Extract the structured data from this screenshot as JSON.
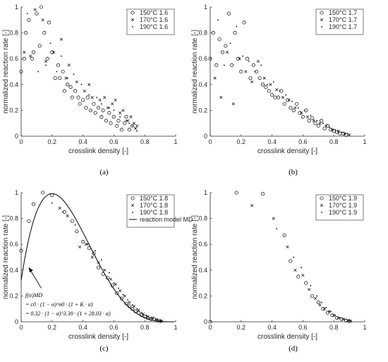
{
  "colors": {
    "axis": "#262626",
    "marker": "#000000",
    "background": "#ffffff"
  },
  "panels": [
    {
      "caption": "(a)",
      "xlabel": "crosslink density [-]",
      "ylabel": "normalized reaction rate [-]",
      "xticks": [
        "0",
        "0.2",
        "0.4",
        "0.6",
        "0.8",
        "1"
      ],
      "yticks": [
        "0",
        "0.2",
        "0.4",
        "0.6",
        "0.8",
        "1"
      ],
      "legend": [
        "150°C 1.6",
        "170°C 1.6",
        "190°C 1.6"
      ]
    },
    {
      "caption": "(b)",
      "xlabel": "crosslink density [-]",
      "ylabel": "normalized reaction rate [-]",
      "xticks": [
        "0",
        "0.2",
        "0.4",
        "0.6",
        "0.8",
        "1"
      ],
      "yticks": [
        "0",
        "0.2",
        "0.4",
        "0.6",
        "0.8",
        "1"
      ],
      "legend": [
        "150°C 1.7",
        "170°C 1.7",
        "190°C 1.7"
      ]
    },
    {
      "caption": "(c)",
      "xlabel": "crosslink density [-]",
      "ylabel": "normalized reaction rate [-]",
      "xticks": [
        "0",
        "0.2",
        "0.4",
        "0.6",
        "0.8",
        "1"
      ],
      "yticks": [
        "0",
        "0.2",
        "0.4",
        "0.6",
        "0.8",
        "1"
      ],
      "legend": [
        "150°C 1.8",
        "170°C 1.8",
        "190°C 1.8",
        "reaction model MD"
      ],
      "annotation": {
        "line1": "f(α)MD",
        "line2": "= c0 · (1 − α)^n0 · (1 + K · α)",
        "line3": "= 0.32 · (1 − α)^3.39 · (1 + 28.03 · α)"
      }
    },
    {
      "caption": "(d)",
      "xlabel": "crosslink density [-]",
      "ylabel": "normalized reaction rate [-]",
      "xticks": [
        "0",
        "0.2",
        "0.4",
        "0.6",
        "0.8",
        "1"
      ],
      "yticks": [
        "0",
        "0.2",
        "0.4",
        "0.6",
        "0.8",
        "1"
      ],
      "legend": [
        "150°C 1.9",
        "170°C 1.9",
        "190°C 1.9"
      ]
    }
  ],
  "chart_data": [
    {
      "type": "scatter",
      "xlabel": "crosslink density [-]",
      "ylabel": "normalized reaction rate [-]",
      "xlim": [
        0,
        1
      ],
      "ylim": [
        0,
        1
      ],
      "legend_position": "top-right",
      "series": [
        {
          "name": "150°C 1.6",
          "marker": "circle",
          "x": [
            0.0,
            0.02,
            0.03,
            0.05,
            0.07,
            0.08,
            0.1,
            0.12,
            0.13,
            0.15,
            0.17,
            0.18,
            0.2,
            0.22,
            0.24,
            0.25,
            0.27,
            0.28,
            0.3,
            0.32,
            0.33,
            0.35,
            0.37,
            0.38,
            0.4,
            0.42,
            0.43,
            0.45,
            0.47,
            0.48,
            0.5,
            0.52,
            0.53,
            0.55,
            0.57,
            0.58,
            0.6,
            0.62,
            0.63,
            0.65,
            0.67,
            0.68,
            0.7,
            0.72
          ],
          "y": [
            0.5,
            0.6,
            0.8,
            0.9,
            0.6,
            0.65,
            0.95,
            0.7,
            1.0,
            0.8,
            0.6,
            0.88,
            0.65,
            0.45,
            0.55,
            0.45,
            0.5,
            0.35,
            0.4,
            0.38,
            0.3,
            0.35,
            0.3,
            0.25,
            0.28,
            0.22,
            0.3,
            0.2,
            0.25,
            0.18,
            0.22,
            0.15,
            0.2,
            0.12,
            0.18,
            0.1,
            0.15,
            0.08,
            0.12,
            0.05,
            0.1,
            0.15,
            0.05,
            0.08
          ]
        },
        {
          "name": "170°C 1.6",
          "marker": "x",
          "x": [
            0.02,
            0.06,
            0.09,
            0.14,
            0.16,
            0.21,
            0.26,
            0.29,
            0.31,
            0.36,
            0.41,
            0.44,
            0.46,
            0.51,
            0.54,
            0.56,
            0.59,
            0.61,
            0.64,
            0.66,
            0.69,
            0.71,
            0.73,
            0.74,
            0.75
          ],
          "y": [
            0.65,
            0.62,
            0.98,
            0.9,
            0.58,
            0.65,
            0.75,
            0.45,
            0.55,
            0.42,
            0.35,
            0.4,
            0.3,
            0.28,
            0.3,
            0.22,
            0.25,
            0.28,
            0.18,
            0.2,
            0.12,
            0.15,
            0.1,
            0.06,
            0.08
          ]
        },
        {
          "name": "190°C 1.6",
          "marker": "dot",
          "x": [
            0.04,
            0.11,
            0.16,
            0.19,
            0.23,
            0.26,
            0.3,
            0.34,
            0.39,
            0.44,
            0.49,
            0.52,
            0.57,
            0.6,
            0.64,
            0.68,
            0.7,
            0.72,
            0.74,
            0.75
          ],
          "y": [
            0.95,
            0.5,
            0.55,
            0.72,
            0.5,
            0.62,
            0.45,
            0.48,
            0.4,
            0.32,
            0.3,
            0.25,
            0.22,
            0.2,
            0.15,
            0.12,
            0.1,
            0.08,
            0.06,
            0.04
          ]
        }
      ]
    },
    {
      "type": "scatter",
      "xlabel": "crosslink density [-]",
      "ylabel": "normalized reaction rate [-]",
      "xlim": [
        0,
        1
      ],
      "ylim": [
        0,
        1
      ],
      "legend_position": "top-right",
      "series": [
        {
          "name": "150°C 1.7",
          "marker": "circle",
          "x": [
            0.0,
            0.02,
            0.04,
            0.06,
            0.08,
            0.1,
            0.12,
            0.14,
            0.16,
            0.18,
            0.2,
            0.22,
            0.24,
            0.26,
            0.28,
            0.3,
            0.32,
            0.34,
            0.36,
            0.38,
            0.4,
            0.42,
            0.44,
            0.46,
            0.48,
            0.5,
            0.52,
            0.54,
            0.56,
            0.58,
            0.6,
            0.62,
            0.64,
            0.66,
            0.68,
            0.7,
            0.72,
            0.74,
            0.76,
            0.78,
            0.8,
            0.82,
            0.84,
            0.86,
            0.88
          ],
          "y": [
            0.6,
            0.8,
            0.55,
            0.75,
            0.65,
            0.7,
            0.95,
            0.55,
            0.8,
            0.6,
            0.5,
            0.88,
            0.6,
            0.45,
            0.55,
            0.5,
            0.45,
            0.4,
            0.38,
            0.35,
            0.32,
            0.3,
            0.3,
            0.35,
            0.25,
            0.28,
            0.22,
            0.2,
            0.25,
            0.18,
            0.15,
            0.2,
            0.12,
            0.14,
            0.1,
            0.08,
            0.12,
            0.06,
            0.08,
            0.05,
            0.04,
            0.03,
            0.02,
            0.02,
            0.01
          ]
        },
        {
          "name": "170°C 1.7",
          "marker": "x",
          "x": [
            0.03,
            0.07,
            0.11,
            0.15,
            0.19,
            0.23,
            0.27,
            0.31,
            0.35,
            0.39,
            0.43,
            0.47,
            0.51,
            0.55,
            0.59,
            0.63,
            0.67,
            0.71,
            0.75,
            0.79,
            0.83,
            0.87,
            0.9
          ],
          "y": [
            0.45,
            0.3,
            0.65,
            0.25,
            0.6,
            0.5,
            0.42,
            0.58,
            0.45,
            0.4,
            0.36,
            0.3,
            0.28,
            0.22,
            0.18,
            0.15,
            0.12,
            0.1,
            0.08,
            0.05,
            0.04,
            0.02,
            0.01
          ]
        },
        {
          "name": "190°C 1.7",
          "marker": "dot",
          "x": [
            0.05,
            0.09,
            0.13,
            0.17,
            0.21,
            0.25,
            0.29,
            0.33,
            0.37,
            0.41,
            0.45,
            0.49,
            0.53,
            0.57,
            0.61,
            0.65,
            0.69,
            0.73,
            0.77,
            0.81,
            0.85,
            0.89
          ],
          "y": [
            0.9,
            0.55,
            0.72,
            0.85,
            0.62,
            0.58,
            0.5,
            0.55,
            0.4,
            0.42,
            0.35,
            0.32,
            0.27,
            0.22,
            0.2,
            0.16,
            0.12,
            0.1,
            0.07,
            0.05,
            0.03,
            0.02
          ]
        }
      ]
    },
    {
      "type": "scatter",
      "xlabel": "crosslink density [-]",
      "ylabel": "normalized reaction rate [-]",
      "xlim": [
        0,
        1
      ],
      "ylim": [
        0,
        1
      ],
      "legend_position": "top-right",
      "model": {
        "name": "reaction model MD",
        "c0": 0.32,
        "n0": 3.39,
        "K": 28.03
      },
      "series": [
        {
          "name": "150°C 1.8",
          "marker": "circle",
          "x": [
            0.0,
            0.05,
            0.08,
            0.14,
            0.2,
            0.28,
            0.33,
            0.36,
            0.4,
            0.44,
            0.47,
            0.5,
            0.53,
            0.56,
            0.59,
            0.62,
            0.65,
            0.68,
            0.7,
            0.72,
            0.74,
            0.76,
            0.78,
            0.8,
            0.82,
            0.84,
            0.86,
            0.88,
            0.9
          ],
          "y": [
            0.55,
            0.78,
            0.91,
            1.0,
            0.98,
            0.85,
            0.78,
            0.7,
            0.62,
            0.57,
            0.53,
            0.42,
            0.37,
            0.34,
            0.28,
            0.22,
            0.18,
            0.14,
            0.12,
            0.1,
            0.08,
            0.07,
            0.05,
            0.04,
            0.03,
            0.02,
            0.02,
            0.01,
            0.005
          ]
        },
        {
          "name": "170°C 1.8",
          "marker": "x",
          "x": [
            0.25,
            0.3,
            0.38,
            0.42,
            0.46,
            0.5,
            0.54,
            0.58,
            0.61,
            0.64,
            0.67,
            0.7,
            0.73,
            0.76,
            0.79,
            0.82,
            0.85,
            0.88,
            0.91
          ],
          "y": [
            0.88,
            0.82,
            0.58,
            0.6,
            0.5,
            0.46,
            0.4,
            0.33,
            0.29,
            0.24,
            0.2,
            0.15,
            0.12,
            0.09,
            0.06,
            0.04,
            0.03,
            0.015,
            0.005
          ]
        },
        {
          "name": "190°C 1.8",
          "marker": "dot",
          "x": [
            0.2,
            0.27,
            0.35,
            0.43,
            0.48,
            0.52,
            0.57,
            0.6,
            0.63,
            0.66,
            0.69,
            0.72,
            0.75,
            0.78,
            0.81,
            0.84,
            0.87,
            0.9
          ],
          "y": [
            0.92,
            0.85,
            0.75,
            0.6,
            0.55,
            0.48,
            0.38,
            0.3,
            0.26,
            0.21,
            0.17,
            0.13,
            0.1,
            0.07,
            0.05,
            0.03,
            0.02,
            0.01
          ]
        }
      ]
    },
    {
      "type": "scatter",
      "xlabel": "crosslink density [-]",
      "ylabel": "normalized reaction rate [-]",
      "xlim": [
        0,
        1
      ],
      "ylim": [
        0,
        1
      ],
      "legend_position": "top-right",
      "series": [
        {
          "name": "150°C 1.9",
          "marker": "circle",
          "x": [
            0.0,
            0.17,
            0.34,
            0.48,
            0.52,
            0.57,
            0.62,
            0.66,
            0.7,
            0.73,
            0.76,
            0.79,
            0.82,
            0.85,
            0.88,
            0.9
          ],
          "y": [
            0.0,
            1.0,
            0.99,
            0.67,
            0.47,
            0.35,
            0.3,
            0.2,
            0.15,
            0.1,
            0.07,
            0.05,
            0.03,
            0.02,
            0.01,
            0.005
          ]
        },
        {
          "name": "170°C 1.9",
          "marker": "x",
          "x": [
            0.27,
            0.41,
            0.5,
            0.55,
            0.6,
            0.64,
            0.68,
            0.71,
            0.74,
            0.77,
            0.8,
            0.83,
            0.86,
            0.89,
            0.91
          ],
          "y": [
            0.9,
            0.8,
            0.58,
            0.4,
            0.36,
            0.25,
            0.18,
            0.13,
            0.1,
            0.08,
            0.05,
            0.03,
            0.02,
            0.01,
            0.005
          ]
        },
        {
          "name": "190°C 1.9",
          "marker": "dot",
          "x": [
            0.43,
            0.54,
            0.59,
            0.65,
            0.69,
            0.72,
            0.75,
            0.78,
            0.81,
            0.84,
            0.87,
            0.9
          ],
          "y": [
            0.72,
            0.5,
            0.42,
            0.28,
            0.2,
            0.15,
            0.11,
            0.08,
            0.05,
            0.03,
            0.02,
            0.01
          ]
        }
      ]
    }
  ]
}
